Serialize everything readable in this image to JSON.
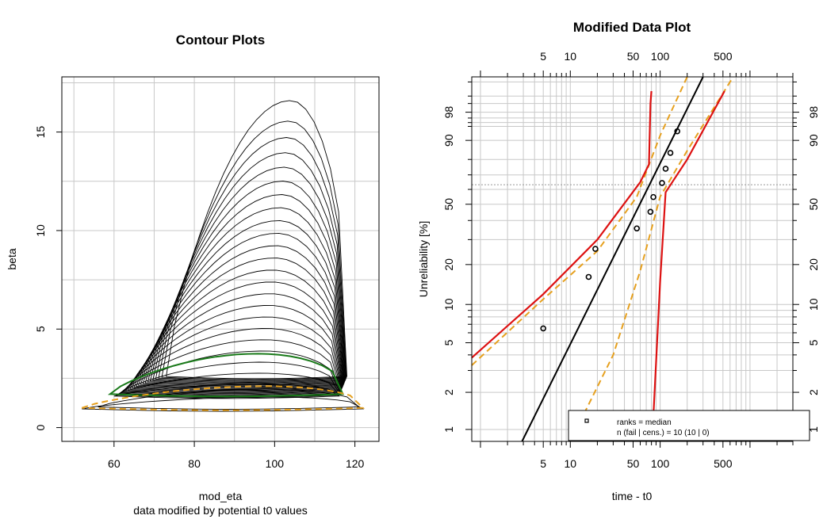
{
  "chart_data": [
    {
      "type": "contour",
      "title": "Contour Plots",
      "xlabel": "mod_eta",
      "xlabel_sub": "data modified by potential t0 values",
      "ylabel": "beta",
      "xlim": [
        47,
        126
      ],
      "ylim": [
        -0.7,
        17.8
      ],
      "xticks": [
        60,
        80,
        100,
        120
      ],
      "yticks": [
        0,
        5,
        10,
        15
      ],
      "grid": true,
      "colors": {
        "main": "#000000",
        "green": "#1a7a1a",
        "orange": "#e6a01e"
      },
      "contour_family": {
        "count": 23,
        "center_x": 102,
        "left_x_start": 73,
        "left_x_end": 60,
        "right_x_start": 118,
        "right_x_end": 116,
        "top_start": 16.6,
        "top_end": 2.2,
        "bottom_start": 2.6,
        "bottom_end": 1.6,
        "peak_x_start": 104,
        "peak_x_end": 96
      },
      "wide_contours": [
        {
          "left_x": 52,
          "right_x": 122,
          "bottom": 0.95,
          "top": 1.55,
          "center_x": 100
        },
        {
          "left_x": 56,
          "right_x": 121,
          "bottom": 1.05,
          "top": 1.95,
          "center_x": 97
        }
      ],
      "highlight_contours": {
        "green": {
          "left_x": 59,
          "right_x": 117,
          "bottom": 1.7,
          "top": 3.75,
          "peak_x": 96
        },
        "orange": {
          "left_x": 52,
          "right_x": 122,
          "bottom": 1.0,
          "top": 2.1,
          "peak_x": 98
        }
      }
    },
    {
      "type": "weibull_probability",
      "title": "Modified Data Plot",
      "xlabel": "time - t0",
      "ylabel": "Unreliability [%]",
      "x_scale": "log",
      "xlim": [
        0.8,
        3000
      ],
      "ylim": [
        0.8,
        99.95
      ],
      "xticks": [
        5,
        10,
        50,
        100,
        500
      ],
      "yticks": [
        1,
        2,
        5,
        10,
        20,
        50,
        90,
        98
      ],
      "grid": true,
      "points": [
        {
          "x": 5.0,
          "y": 6.5
        },
        {
          "x": 16,
          "y": 16.2
        },
        {
          "x": 19,
          "y": 25.9
        },
        {
          "x": 55,
          "y": 35.6
        },
        {
          "x": 78,
          "y": 45.2
        },
        {
          "x": 84,
          "y": 54.8
        },
        {
          "x": 105,
          "y": 64.4
        },
        {
          "x": 115,
          "y": 74.1
        },
        {
          "x": 130,
          "y": 83.8
        },
        {
          "x": 155,
          "y": 93.5
        }
      ],
      "fit_line": {
        "color": "#000000",
        "x": [
          2.9,
          300
        ],
        "y": [
          0.8,
          99.95
        ]
      },
      "bounds_red": [
        {
          "x": [
            0.8,
            5,
            20,
            60,
            75,
            78,
            80
          ],
          "y": [
            3.8,
            12,
            30,
            65,
            77,
            99,
            99.7
          ]
        },
        {
          "x": [
            80,
            85,
            100,
            115,
            200,
            520
          ],
          "y": [
            0.8,
            1.5,
            15,
            58,
            80,
            99.7
          ]
        }
      ],
      "bounds_orange": [
        {
          "x": [
            0.8,
            5,
            20,
            55,
            100,
            200
          ],
          "y": [
            3.3,
            11,
            25,
            55,
            92,
            99.95
          ]
        },
        {
          "x": [
            10,
            30,
            60,
            100,
            200,
            650
          ],
          "y": [
            0.8,
            4,
            18,
            55,
            85,
            99.95
          ]
        }
      ],
      "colors": {
        "red": "#dd1111",
        "orange": "#e6a01e",
        "fit": "#000000"
      },
      "legend": {
        "position": "bottom-right",
        "entries": [
          "ranks = median",
          "n (fail | cens.) = 10 (10 | 0)"
        ]
      }
    }
  ]
}
